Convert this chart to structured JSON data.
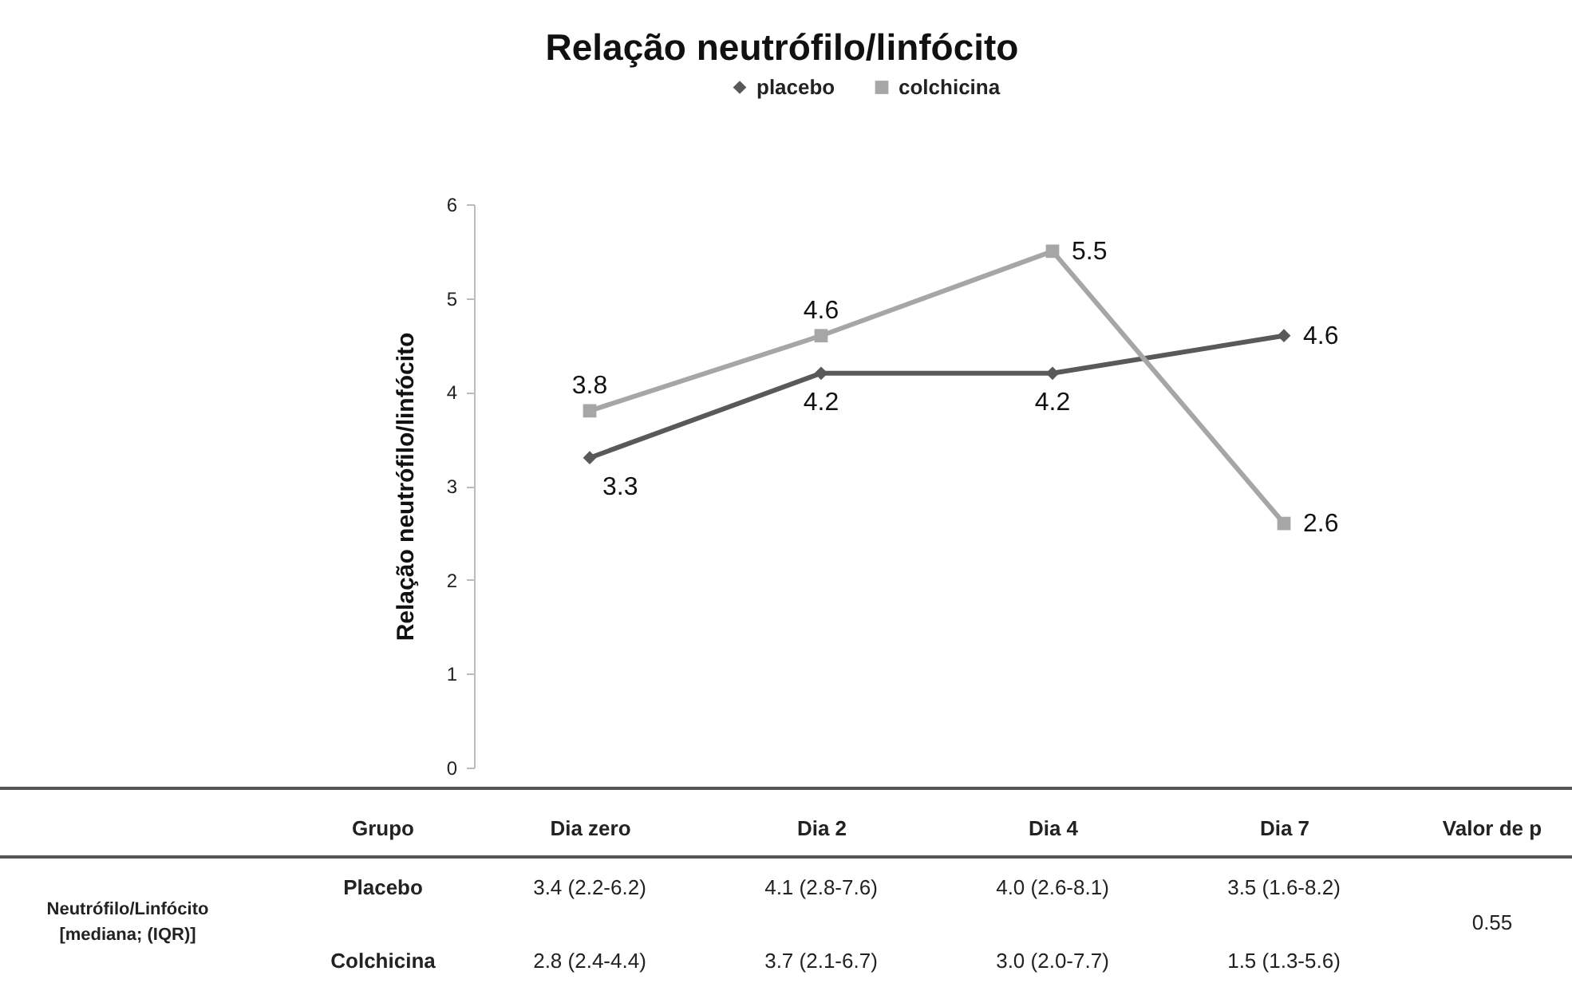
{
  "chart_data": {
    "type": "line",
    "title": "Relação neutrófilo/linfócito",
    "ylabel": "Relação neutrófilo/linfócito",
    "categories": [
      "Dia zero",
      "Dia 2",
      "Dia 4",
      "Dia 7"
    ],
    "series": [
      {
        "name": "placebo",
        "color": "#595959",
        "marker": "diamond",
        "values": [
          3.3,
          4.2,
          4.2,
          4.6
        ]
      },
      {
        "name": "colchicina",
        "color": "#a6a6a6",
        "marker": "square",
        "values": [
          3.8,
          4.6,
          5.5,
          2.6
        ]
      }
    ],
    "ylim": [
      0,
      6
    ],
    "yticks": [
      0,
      1,
      2,
      3,
      4,
      5,
      6
    ],
    "grid": false,
    "legend": "top",
    "data_labels": true,
    "annotations": [
      "Grupo",
      "Valor de p",
      "Neutrófilo/Linfócito [mediana; (IQR)]",
      "Placebo",
      "3.4 (2.2-6.2)",
      "4.1 (2.8-7.6)",
      "4.0 (2.6-8.1)",
      "3.5 (1.6-8.2)",
      "Colchicina",
      "2.8 (2.4-4.4)",
      "3.7 (2.1-6.7)",
      "3.0 (2.0-7.7)",
      "1.5 (1.3-5.6)",
      "0.55"
    ]
  }
}
